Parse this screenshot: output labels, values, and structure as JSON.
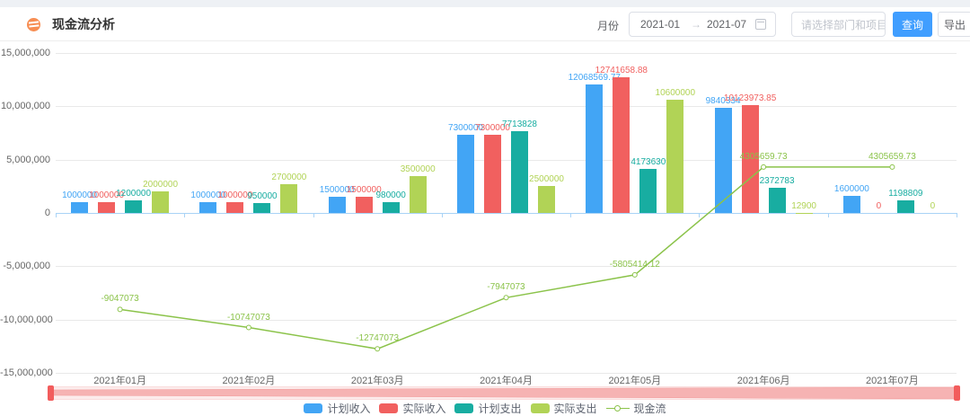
{
  "header": {
    "title": "现金流分析",
    "filters": {
      "month_label": "月份",
      "date_start": "2021-01",
      "date_separator": "→",
      "date_end": "2021-07",
      "project_placeholder": "请选择部门和项目",
      "query_label": "查询",
      "export_label": "导出"
    }
  },
  "chart_data": {
    "type": "bar+line",
    "categories": [
      "2021年01月",
      "2021年02月",
      "2021年03月",
      "2021年04月",
      "2021年05月",
      "2021年06月",
      "2021年07月"
    ],
    "series": [
      {
        "name": "计划收入",
        "color": "#42a5f5",
        "values": [
          1000000,
          1000000,
          1500000,
          7300000,
          12068569.77,
          9840334,
          1600000
        ],
        "labels": [
          "1000000",
          "1000000",
          "1500000",
          "7300000",
          "12068569.77",
          "9840334",
          "1600000"
        ]
      },
      {
        "name": "实际收入",
        "color": "#f1605f",
        "values": [
          1000000,
          1000000,
          1500000,
          7300000,
          12741658.88,
          10123973.85,
          0
        ],
        "labels": [
          "1000000",
          "1000000",
          "1500000",
          "7300000",
          "12741658.88",
          "10123973.85",
          "0"
        ]
      },
      {
        "name": "计划支出",
        "color": "#18ada1",
        "values": [
          1200000,
          950000,
          980000,
          7713828,
          4173630,
          2372783,
          1198809
        ],
        "labels": [
          "1200000",
          "950000",
          "980000",
          "7713828",
          "4173630",
          "2372783",
          "1198809"
        ]
      },
      {
        "name": "实际支出",
        "color": "#b1d356",
        "values": [
          2000000,
          2700000,
          3500000,
          2500000,
          10600000,
          12900,
          0
        ],
        "labels": [
          "2000000",
          "2700000",
          "3500000",
          "2500000",
          "10600000",
          "12900",
          "0"
        ]
      }
    ],
    "line": {
      "name": "现金流",
      "color": "#8bc34a",
      "values": [
        -9047073,
        -10747073,
        -12747073,
        -7947073,
        -5805414.12,
        4305659.73,
        4305659.73
      ],
      "labels": [
        "-9047073",
        "-10747073",
        "-12747073",
        "-7947073",
        "-5805414.12",
        "4305659.73",
        "4305659.73"
      ]
    },
    "y_ticks": [
      {
        "value": 15000000,
        "label": "15,000,000"
      },
      {
        "value": 10000000,
        "label": "10,000,000"
      },
      {
        "value": 5000000,
        "label": "5,000,000"
      },
      {
        "value": 0,
        "label": "0"
      },
      {
        "value": -5000000,
        "label": "-5,000,000"
      },
      {
        "value": -10000000,
        "label": "-10,000,000"
      },
      {
        "value": -15000000,
        "label": "-15,000,000"
      }
    ],
    "ylim": [
      -15000000,
      15000000
    ],
    "grid": true,
    "legend_position": "bottom"
  },
  "slider": {
    "handle_color": "#f25c5c",
    "shadow_color": "#f6b3b3"
  }
}
